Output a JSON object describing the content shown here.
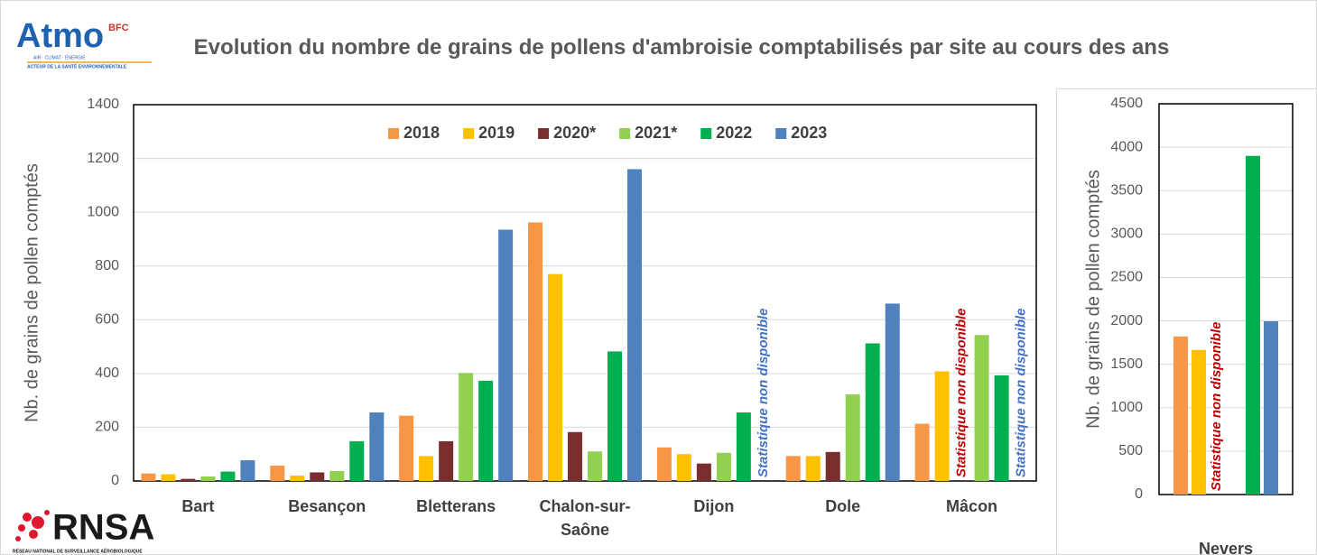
{
  "logos": {
    "atmo": "Atmo",
    "atmo_region": "BFC",
    "atmo_line1": "AIR · CLIMAT · ÉNERGIE",
    "atmo_line2": "ACTEUR DE LA SANTÉ ENVIRONNEMENTALE",
    "rnsa": "RNSA",
    "rnsa_line": "RÉSEAU NATIONAL DE SURVEILLANCE AÉROBIOLOGIQUE"
  },
  "chart_data": [
    {
      "type": "bar",
      "title": "Evolution du nombre de grains de pollens d'ambroisie comptabilisés par site au cours des ans",
      "y_label": "Nb. de grains de pollen comptés",
      "categories": [
        "Bart",
        "Besançon",
        "Bletterans",
        "Chalon-sur-Saône",
        "Dijon",
        "Dole",
        "Mâcon"
      ],
      "series": [
        {
          "name": "2018",
          "color": "#f79646",
          "values": [
            28,
            57,
            243,
            962,
            125,
            93,
            213
          ]
        },
        {
          "name": "2019",
          "color": "#ffc000",
          "values": [
            25,
            20,
            93,
            770,
            100,
            93,
            408
          ]
        },
        {
          "name": "2020*",
          "color": "#7b2c2c",
          "values": [
            8,
            32,
            148,
            182,
            65,
            108,
            null
          ]
        },
        {
          "name": "2021*",
          "color": "#92d050",
          "values": [
            17,
            37,
            402,
            110,
            105,
            322,
            543
          ]
        },
        {
          "name": "2022",
          "color": "#00b050",
          "values": [
            35,
            148,
            373,
            482,
            255,
            512,
            393
          ]
        },
        {
          "name": "2023",
          "color": "#4f81bd",
          "values": [
            77,
            255,
            935,
            1160,
            null,
            660,
            null
          ]
        }
      ],
      "annotations": [
        {
          "text": "Statistique non disponible",
          "category": "Dijon",
          "series": "2023",
          "color": "#4472c4"
        },
        {
          "text": "Statistique non disponible",
          "category": "Mâcon",
          "series": "2020*",
          "color": "#c00000"
        },
        {
          "text": "Statistique non disponible",
          "category": "Mâcon",
          "series": "2023",
          "color": "#4472c4"
        }
      ],
      "ylim": [
        0,
        1400
      ],
      "yticks": [
        0,
        200,
        400,
        600,
        800,
        1000,
        1200,
        1400
      ],
      "grid": true,
      "legend": "top"
    },
    {
      "type": "bar",
      "y_label": "Nb. de grains de pollen comptés",
      "categories": [
        "Nevers"
      ],
      "series": [
        {
          "name": "2018",
          "color": "#f79646",
          "values": [
            1820
          ]
        },
        {
          "name": "2019",
          "color": "#ffc000",
          "values": [
            1665
          ]
        },
        {
          "name": "2020*",
          "color": "#7b2c2c",
          "values": [
            null
          ]
        },
        {
          "name": "2021*",
          "color": "#92d050",
          "values": [
            null
          ]
        },
        {
          "name": "2022",
          "color": "#00b050",
          "values": [
            3900
          ]
        },
        {
          "name": "2023",
          "color": "#4f81bd",
          "values": [
            1995
          ]
        }
      ],
      "annotations": [
        {
          "text": "Statistique non disponible",
          "category": "Nevers",
          "series": "2020*",
          "color": "#c00000"
        }
      ],
      "ylim": [
        0,
        4500
      ],
      "yticks": [
        0,
        500,
        1000,
        1500,
        2000,
        2500,
        3000,
        3500,
        4000,
        4500
      ],
      "grid": true
    }
  ]
}
